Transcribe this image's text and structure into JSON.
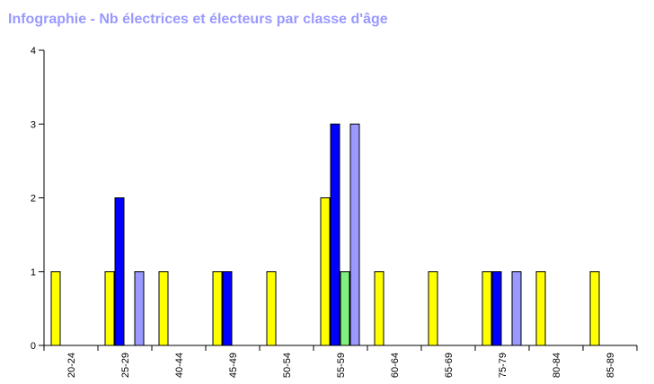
{
  "chart_data": {
    "type": "bar",
    "title": "Infographie - Nb électrices et électeurs par classe d'âge",
    "xlabel": "",
    "ylabel": "",
    "ylim": [
      0,
      4
    ],
    "yticks": [
      "0",
      "1",
      "2",
      "3",
      "4"
    ],
    "categories": [
      "20-24",
      "25-29",
      "40-44",
      "45-49",
      "50-54",
      "55-59",
      "60-64",
      "65-69",
      "75-79",
      "80-84",
      "85-89"
    ],
    "series": [
      {
        "color": "#ffff00",
        "values": [
          1,
          1,
          1,
          1,
          1,
          2,
          1,
          1,
          1,
          1,
          1
        ]
      },
      {
        "color": "#0000ff",
        "values": [
          0,
          2,
          0,
          1,
          0,
          3,
          0,
          0,
          1,
          0,
          0
        ]
      },
      {
        "color": "#80f080",
        "values": [
          0,
          0,
          0,
          0,
          0,
          1,
          0,
          0,
          0,
          0,
          0
        ]
      },
      {
        "color": "#9999ff",
        "values": [
          0,
          1,
          0,
          0,
          0,
          3,
          0,
          0,
          1,
          0,
          0
        ]
      }
    ],
    "grid": false,
    "legend": "none"
  }
}
